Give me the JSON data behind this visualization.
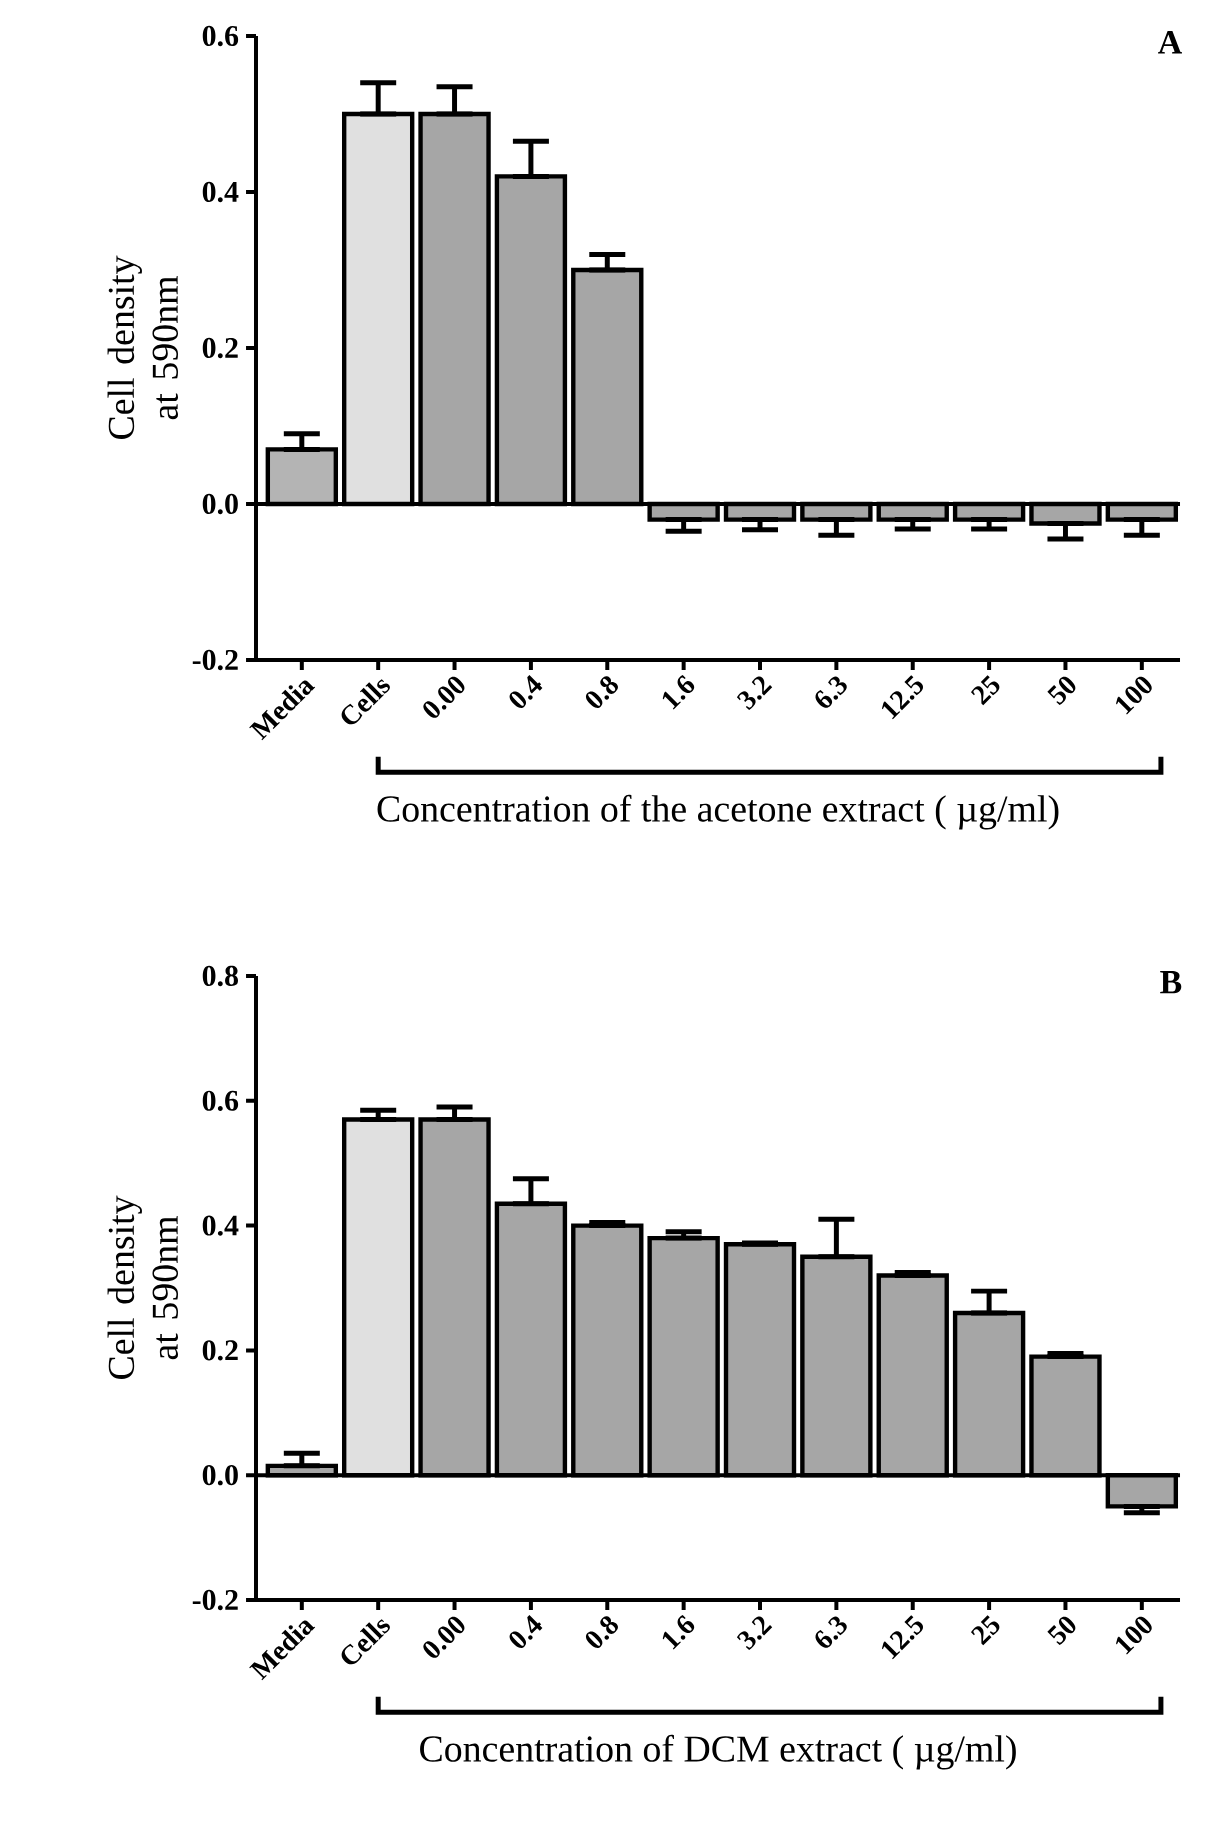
{
  "chart_data": [
    {
      "type": "bar",
      "title": "A",
      "xlabel": "Concentration of the acetone extract ( µg/ml)",
      "ylabel": "Cell density at 590nm",
      "categories": [
        "Media",
        "Cells",
        "0.00",
        "0.4",
        "0.8",
        "1.6",
        "3.2",
        "6.3",
        "12.5",
        "25",
        "50",
        "100"
      ],
      "values": [
        0.07,
        0.5,
        0.5,
        0.42,
        0.3,
        -0.02,
        -0.02,
        -0.02,
        -0.02,
        -0.02,
        -0.025,
        -0.02
      ],
      "errors": [
        [
          0.07,
          0.09
        ],
        [
          0.5,
          0.54
        ],
        [
          0.5,
          0.535
        ],
        [
          0.42,
          0.465
        ],
        [
          0.3,
          0.32
        ],
        [
          -0.035,
          -0.02
        ],
        [
          -0.033,
          -0.02
        ],
        [
          -0.04,
          -0.02
        ],
        [
          -0.032,
          -0.02
        ],
        [
          -0.032,
          -0.02
        ],
        [
          -0.045,
          -0.025
        ],
        [
          -0.04,
          -0.02
        ]
      ],
      "colors": [
        "#b4b4b4",
        "#e0e0e0",
        "#a6a6a6",
        "#a6a6a6",
        "#a6a6a6",
        "#a6a6a6",
        "#a6a6a6",
        "#a6a6a6",
        "#a6a6a6",
        "#a6a6a6",
        "#a6a6a6",
        "#a6a6a6"
      ],
      "ylim": [
        -0.2,
        0.6
      ],
      "yticks": [
        {
          "value": -0.2,
          "label": "-0.2"
        },
        {
          "value": 0,
          "label": "0.0"
        },
        {
          "value": 0.2,
          "label": "0.2"
        },
        {
          "value": 0.4,
          "label": "0.4"
        },
        {
          "value": 0.6,
          "label": "0.6"
        }
      ],
      "ref_lines": [
        {
          "axis": "y",
          "value": 0
        }
      ],
      "grid": false
    },
    {
      "type": "bar",
      "title": "B",
      "xlabel": "Concentration of DCM extract ( µg/ml)",
      "ylabel": "Cell density at 590nm",
      "categories": [
        "Media",
        "Cells",
        "0.00",
        "0.4",
        "0.8",
        "1.6",
        "3.2",
        "6.3",
        "12.5",
        "25",
        "50",
        "100"
      ],
      "values": [
        0.015,
        0.57,
        0.57,
        0.435,
        0.4,
        0.38,
        0.37,
        0.35,
        0.32,
        0.26,
        0.19,
        -0.05
      ],
      "errors": [
        [
          0.015,
          0.035
        ],
        [
          0.57,
          0.585
        ],
        [
          0.57,
          0.59
        ],
        [
          0.435,
          0.475
        ],
        [
          0.4,
          0.405
        ],
        [
          0.38,
          0.39
        ],
        [
          0.37,
          0.372
        ],
        [
          0.35,
          0.41
        ],
        [
          0.32,
          0.325
        ],
        [
          0.26,
          0.295
        ],
        [
          0.19,
          0.195
        ],
        [
          -0.06,
          -0.05
        ]
      ],
      "colors": [
        "#a6a6a6",
        "#e0e0e0",
        "#a6a6a6",
        "#a6a6a6",
        "#a6a6a6",
        "#a6a6a6",
        "#a6a6a6",
        "#a6a6a6",
        "#a6a6a6",
        "#a6a6a6",
        "#a6a6a6",
        "#a6a6a6"
      ],
      "ylim": [
        -0.2,
        0.8
      ],
      "yticks": [
        {
          "value": -0.2,
          "label": "-0.2"
        },
        {
          "value": 0,
          "label": "0.0"
        },
        {
          "value": 0.2,
          "label": "0.2"
        },
        {
          "value": 0.4,
          "label": "0.4"
        },
        {
          "value": 0.6,
          "label": "0.6"
        },
        {
          "value": 0.8,
          "label": "0.8"
        }
      ],
      "ref_lines": [
        {
          "axis": "y",
          "value": 0
        }
      ],
      "grid": false
    }
  ]
}
